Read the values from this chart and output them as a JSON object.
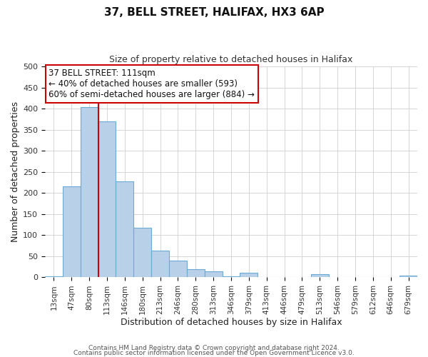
{
  "title": "37, BELL STREET, HALIFAX, HX3 6AP",
  "subtitle": "Size of property relative to detached houses in Halifax",
  "xlabel": "Distribution of detached houses by size in Halifax",
  "ylabel": "Number of detached properties",
  "bar_labels": [
    "13sqm",
    "47sqm",
    "80sqm",
    "113sqm",
    "146sqm",
    "180sqm",
    "213sqm",
    "246sqm",
    "280sqm",
    "313sqm",
    "346sqm",
    "379sqm",
    "413sqm",
    "446sqm",
    "479sqm",
    "513sqm",
    "546sqm",
    "579sqm",
    "612sqm",
    "646sqm",
    "679sqm"
  ],
  "bar_values": [
    3,
    215,
    403,
    370,
    228,
    118,
    64,
    39,
    20,
    15,
    3,
    11,
    1,
    1,
    1,
    7,
    1,
    1,
    1,
    1,
    5
  ],
  "bar_color": "#b8d0e8",
  "bar_edge_color": "#6aaad4",
  "vline_color": "#cc0000",
  "annotation_title": "37 BELL STREET: 111sqm",
  "annotation_line1": "← 40% of detached houses are smaller (593)",
  "annotation_line2": "60% of semi-detached houses are larger (884) →",
  "annotation_box_color": "#ffffff",
  "annotation_box_edge_color": "#cc0000",
  "ylim": [
    0,
    500
  ],
  "yticks": [
    0,
    50,
    100,
    150,
    200,
    250,
    300,
    350,
    400,
    450,
    500
  ],
  "footer1": "Contains HM Land Registry data © Crown copyright and database right 2024.",
  "footer2": "Contains public sector information licensed under the Open Government Licence v3.0.",
  "bg_color": "#ffffff",
  "plot_bg_color": "#ffffff",
  "grid_color": "#d0d0d0"
}
